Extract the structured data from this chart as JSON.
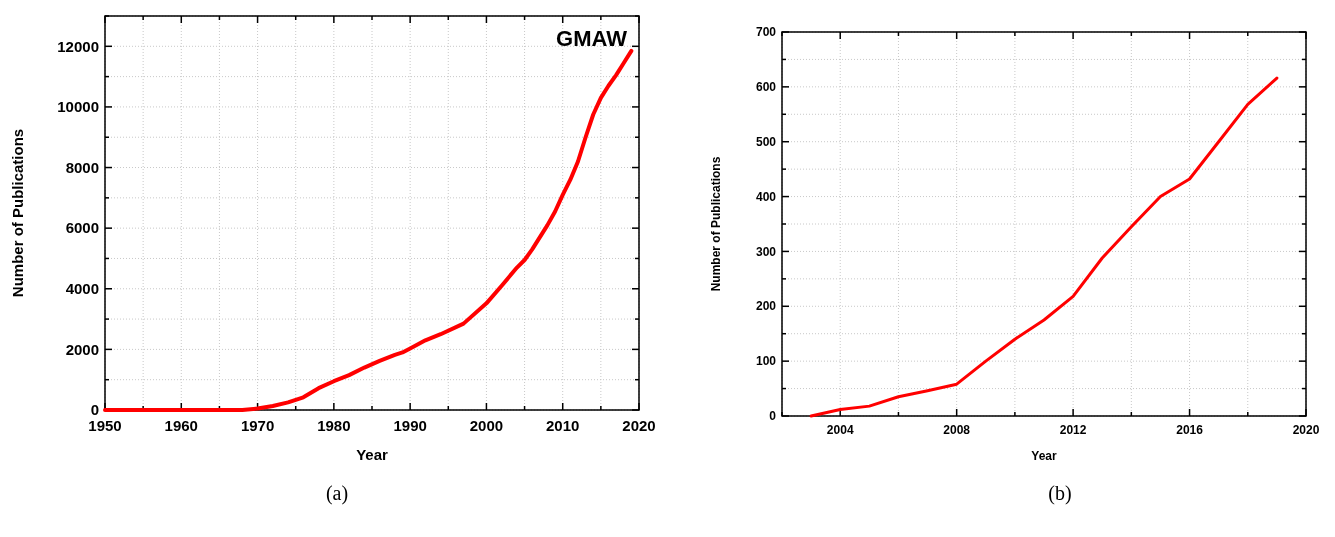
{
  "chart_data": [
    {
      "type": "line",
      "xlabel": "Year",
      "ylabel": "Number of Publications",
      "annotations": [
        "GMAW",
        "(a)"
      ],
      "x": [
        1950,
        1955,
        1960,
        1965,
        1968,
        1970,
        1972,
        1974,
        1976,
        1978,
        1980,
        1982,
        1984,
        1986,
        1988,
        1989,
        1990,
        1992,
        1994,
        1997,
        2000,
        2002,
        2004,
        2005,
        2006,
        2008,
        2009,
        2010,
        2011,
        2012,
        2013,
        2014,
        2015,
        2016,
        2017,
        2018,
        2019
      ],
      "series": [
        {
          "color": "#ff0000",
          "values": [
            0,
            0,
            0,
            0,
            0,
            50,
            130,
            250,
            420,
            720,
            950,
            1150,
            1400,
            1620,
            1820,
            1900,
            2030,
            2300,
            2500,
            2850,
            3520,
            4100,
            4700,
            4950,
            5300,
            6100,
            6550,
            7100,
            7600,
            8200,
            9000,
            9750,
            10300,
            10700,
            11050,
            11450,
            11850
          ]
        }
      ],
      "xlim": [
        1950,
        2020
      ],
      "ylim": [
        0,
        13000
      ],
      "xticks": [
        1950,
        {
          "value": 1955,
          "label": null
        },
        1960,
        {
          "value": 1965,
          "label": null
        },
        1970,
        {
          "value": 1975,
          "label": null
        },
        1980,
        {
          "value": 1985,
          "label": null
        },
        1990,
        {
          "value": 1995,
          "label": null
        },
        2000,
        {
          "value": 2005,
          "label": null
        },
        2010,
        {
          "value": 2015,
          "label": null
        },
        2020
      ],
      "yticks": [
        0,
        {
          "value": 1000,
          "label": null
        },
        2000,
        {
          "value": 3000,
          "label": null
        },
        4000,
        {
          "value": 5000,
          "label": null
        },
        6000,
        {
          "value": 7000,
          "label": null
        },
        8000,
        {
          "value": 9000,
          "label": null
        },
        10000,
        {
          "value": 11000,
          "label": null
        },
        12000,
        {
          "value": 13000,
          "label": null
        }
      ],
      "grid": true,
      "marker": "none",
      "line_style": "solid"
    },
    {
      "type": "line",
      "xlabel": "Year",
      "ylabel": "Number of Publications",
      "annotations": [
        "(b)"
      ],
      "x": [
        2003,
        2004,
        2005,
        2006,
        2007,
        2008,
        2009,
        2010,
        2011,
        2012,
        2013,
        2014,
        2015,
        2016,
        2017,
        2018,
        2019
      ],
      "series": [
        {
          "color": "#ff0000",
          "values": [
            0,
            12,
            18,
            35,
            46,
            58,
            100,
            140,
            175,
            218,
            288,
            345,
            400,
            432,
            500,
            568,
            616
          ]
        }
      ],
      "xlim": [
        2002,
        2020
      ],
      "ylim": [
        0,
        700
      ],
      "xticks": [
        {
          "value": 2002,
          "label": null
        },
        2004,
        {
          "value": 2006,
          "label": null
        },
        2008,
        {
          "value": 2010,
          "label": null
        },
        2012,
        {
          "value": 2014,
          "label": null
        },
        2016,
        {
          "value": 2018,
          "label": null
        },
        2020
      ],
      "yticks": [
        0,
        {
          "value": 50,
          "label": null
        },
        100,
        {
          "value": 150,
          "label": null
        },
        200,
        {
          "value": 250,
          "label": null
        },
        300,
        {
          "value": 350,
          "label": null
        },
        400,
        {
          "value": 450,
          "label": null
        },
        500,
        {
          "value": 550,
          "label": null
        },
        600,
        {
          "value": 650,
          "label": null
        },
        700
      ],
      "grid": true,
      "marker": "none",
      "line_style": "solid"
    }
  ]
}
